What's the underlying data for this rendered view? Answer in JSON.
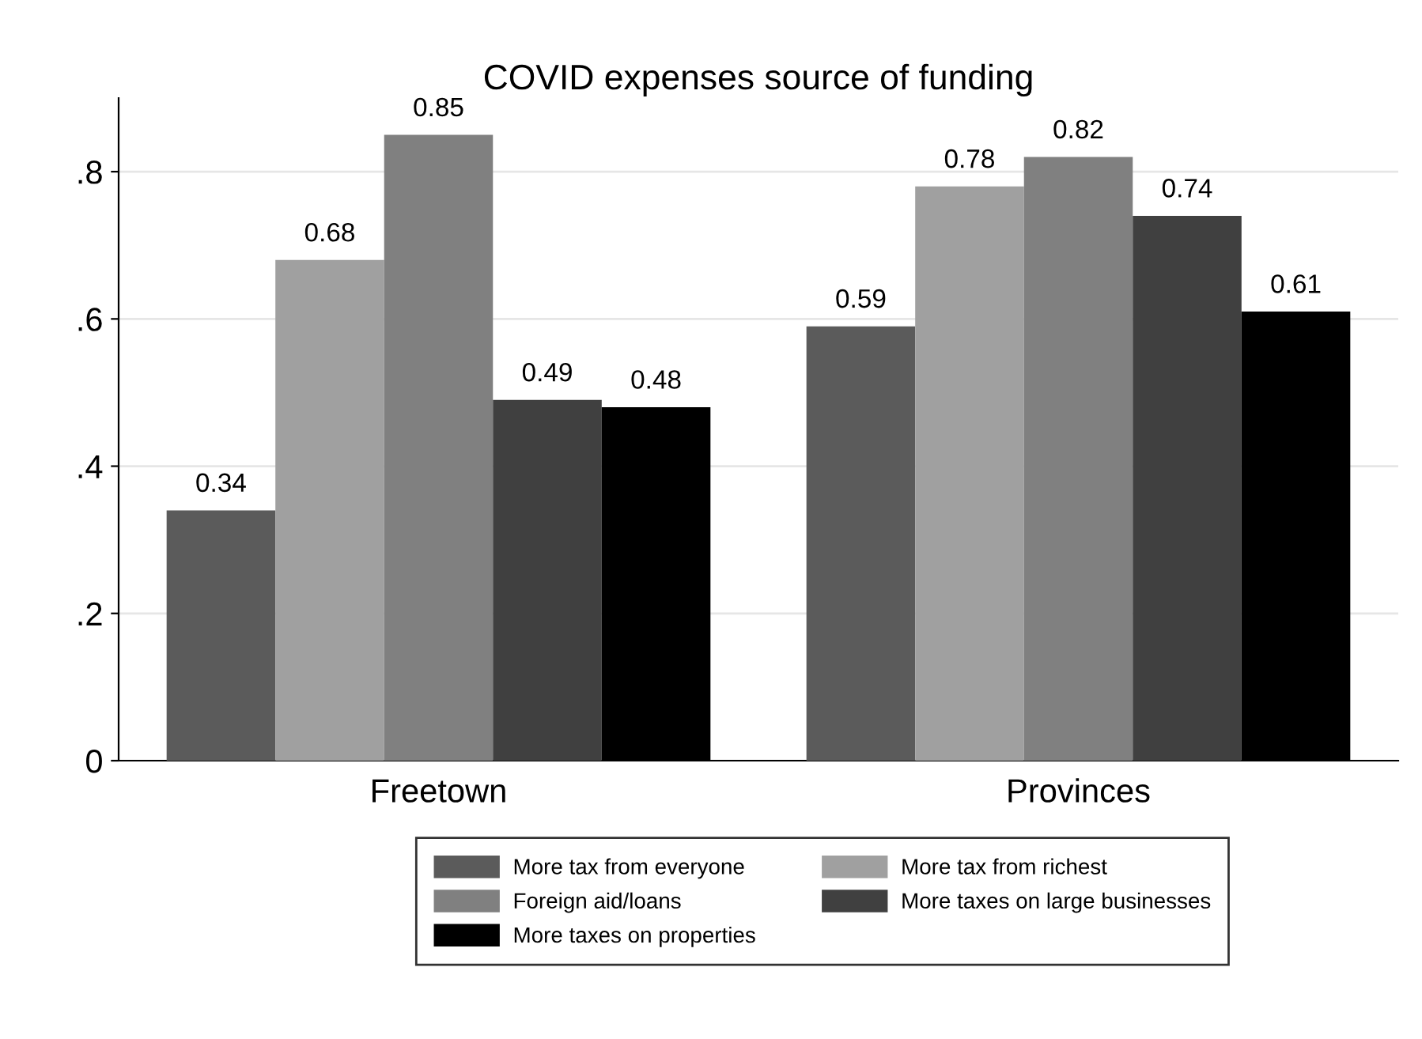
{
  "chart_data": {
    "type": "bar",
    "title": "COVID expenses source of funding",
    "categories": [
      "Freetown",
      "Provinces"
    ],
    "series": [
      {
        "name": "More tax from everyone",
        "color": "#5b5b5b",
        "values": [
          0.34,
          0.59
        ]
      },
      {
        "name": "More tax from richest",
        "color": "#a0a0a0",
        "values": [
          0.68,
          0.78
        ]
      },
      {
        "name": "Foreign aid/loans",
        "color": "#808080",
        "values": [
          0.85,
          0.82
        ]
      },
      {
        "name": "More taxes on large businesses",
        "color": "#404040",
        "values": [
          0.49,
          0.74
        ]
      },
      {
        "name": "More taxes on properties",
        "color": "#000000",
        "values": [
          0.48,
          0.61
        ]
      }
    ],
    "ylim": [
      0,
      0.9
    ],
    "yticks": [
      0,
      {
        "value": 0.2,
        "label": ".2"
      },
      {
        "value": 0.4,
        "label": ".4"
      },
      {
        "value": 0.6,
        "label": ".6"
      },
      {
        "value": 0.8,
        "label": ".8"
      }
    ],
    "grid": "y",
    "legend": "bottom",
    "data_labels": true
  }
}
